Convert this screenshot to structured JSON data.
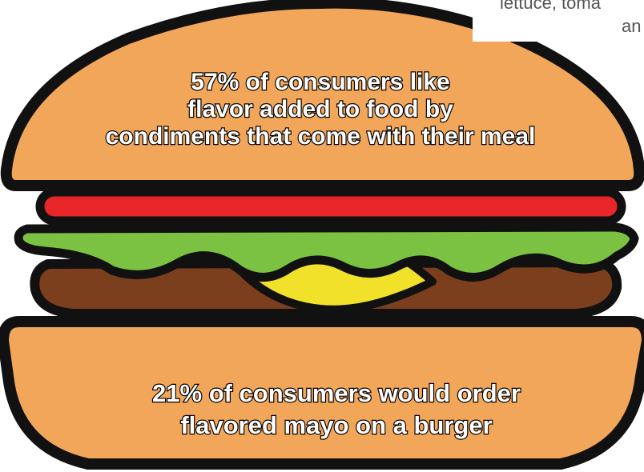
{
  "infographic": {
    "top_bun_text": {
      "line1": "57% of consumers like",
      "line2": "flavor added to food by",
      "line3": "condiments that come with their meal"
    },
    "bottom_bun_text": {
      "line1": "21% of consumers would order",
      "line2": "flavored mayo on a burger"
    },
    "cropped_note": {
      "line1": "lettuce, toma",
      "line2": "an"
    }
  },
  "colors": {
    "bun": "#f2a65a",
    "tomato": "#e8262a",
    "lettuce": "#7cc242",
    "cheese": "#f2e12a",
    "patty": "#7b3f1e",
    "outline": "#111111"
  },
  "icons": [
    "hamburger-illustration"
  ]
}
